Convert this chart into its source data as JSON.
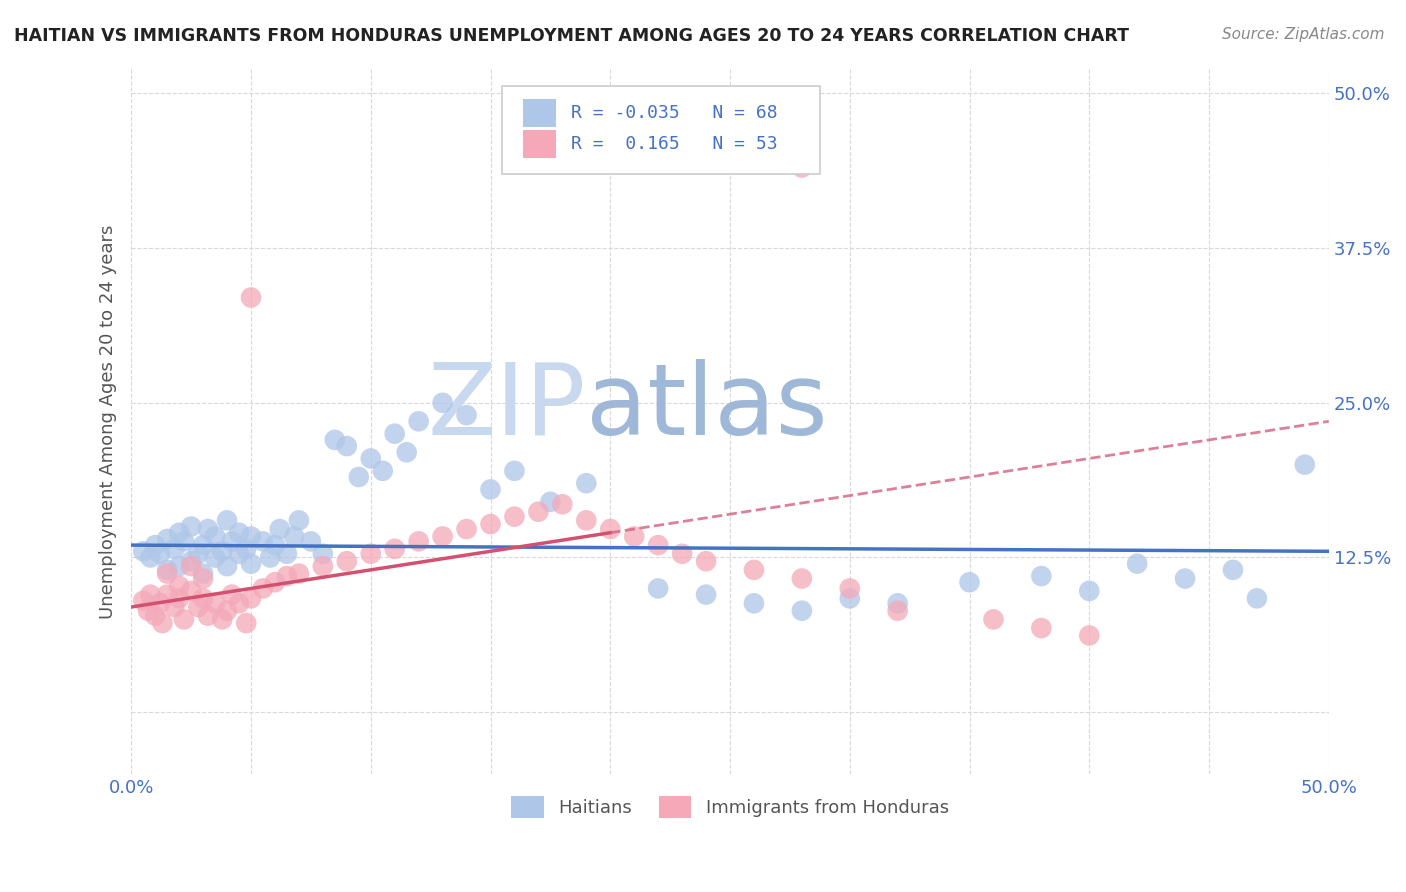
{
  "title": "HAITIAN VS IMMIGRANTS FROM HONDURAS UNEMPLOYMENT AMONG AGES 20 TO 24 YEARS CORRELATION CHART",
  "source": "Source: ZipAtlas.com",
  "ylabel": "Unemployment Among Ages 20 to 24 years",
  "xlim": [
    0.0,
    0.5
  ],
  "ylim": [
    -0.05,
    0.52
  ],
  "yticks": [
    0.0,
    0.125,
    0.25,
    0.375,
    0.5
  ],
  "ytick_labels": [
    "",
    "12.5%",
    "25.0%",
    "37.5%",
    "50.0%"
  ],
  "xtick_values": [
    0.0,
    0.05,
    0.1,
    0.15,
    0.2,
    0.25,
    0.3,
    0.35,
    0.4,
    0.45,
    0.5
  ],
  "xtick_labels": [
    "0.0%",
    "",
    "",
    "",
    "",
    "",
    "",
    "",
    "",
    "",
    "50.0%"
  ],
  "haitians_R": -0.035,
  "haitians_N": 68,
  "honduras_R": 0.165,
  "honduras_N": 53,
  "blue_color": "#aec6e8",
  "pink_color": "#f4a8b8",
  "blue_line_color": "#4472c4",
  "pink_line_color": "#d45070",
  "pink_dash_color": "#d46080",
  "legend_text_color": "#4472c4",
  "watermark_zip": "ZIP",
  "watermark_atlas": "atlas",
  "watermark_zip_color": "#c8d8ee",
  "watermark_atlas_color": "#a0b8d8",
  "background_color": "#ffffff",
  "grid_color": "#d8d8d8",
  "title_color": "#222222",
  "source_color": "#888888",
  "label_color": "#555555",
  "tick_color": "#4472c4",
  "legend_border_color": "#cccccc",
  "bottom_legend_color": "#555555"
}
